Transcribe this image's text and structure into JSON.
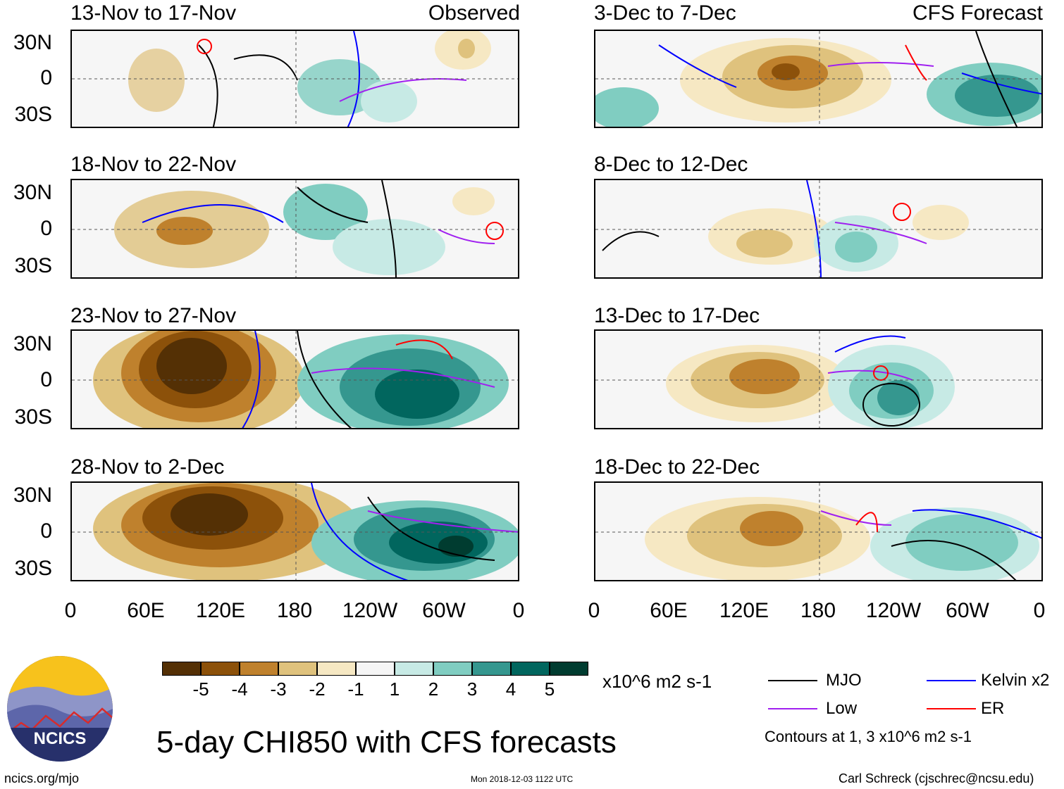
{
  "figure": {
    "title": "5-day CHI850 with CFS forecasts",
    "left_header": "Observed",
    "right_header": "CFS Forecast",
    "units": "x10^6 m2 s-1",
    "website": "ncics.org/mjo",
    "timestamp": "Mon 2018-12-03 1122 UTC",
    "author": "Carl Schreck (cjschrec@ncsu.edu)",
    "logo_text": "NCICS",
    "contour_note": "Contours at 1, 3 x10^6 m2 s-1"
  },
  "axes": {
    "lat_labels": [
      "30N",
      "0",
      "30S"
    ],
    "lon_labels": [
      "0",
      "60E",
      "120E",
      "180",
      "120W",
      "60W",
      "0"
    ]
  },
  "panels": {
    "observed": [
      {
        "title": "13-Nov to 17-Nov"
      },
      {
        "title": "18-Nov to 22-Nov"
      },
      {
        "title": "23-Nov to 27-Nov"
      },
      {
        "title": "28-Nov to 2-Dec"
      }
    ],
    "forecast": [
      {
        "title": "3-Dec to 7-Dec"
      },
      {
        "title": "8-Dec to 12-Dec"
      },
      {
        "title": "13-Dec to 17-Dec"
      },
      {
        "title": "18-Dec to 22-Dec"
      }
    ]
  },
  "colorbar": {
    "labels": [
      "-5",
      "-4",
      "-3",
      "-2",
      "-1",
      "1",
      "2",
      "3",
      "4",
      "5"
    ],
    "colors": [
      "#543005",
      "#8c510a",
      "#bf812d",
      "#dfc27d",
      "#f6e8c3",
      "#f5f5f5",
      "#c7eae5",
      "#80cdc1",
      "#35978f",
      "#01665e",
      "#003c30"
    ]
  },
  "legend": {
    "items": [
      {
        "label": "MJO",
        "color": "#000000"
      },
      {
        "label": "Kelvin x2",
        "color": "#0000ff"
      },
      {
        "label": "Low",
        "color": "#a020f0"
      },
      {
        "label": "ER",
        "color": "#ff0000"
      }
    ]
  }
}
